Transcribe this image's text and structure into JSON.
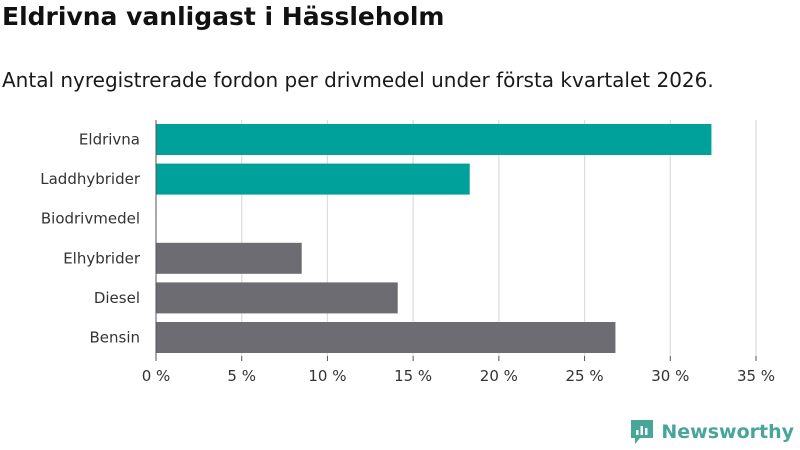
{
  "title": "Eldrivna vanligast i Hässleholm",
  "subtitle": "Antal nyregistrerade fordon per drivmedel under första kvartalet 2026.",
  "brand": {
    "name": "Newsworthy",
    "color": "#48a59a"
  },
  "chart_data": {
    "type": "bar",
    "orientation": "horizontal",
    "categories": [
      "Eldrivna",
      "Laddhybrider",
      "Biodrivmedel",
      "Elhybrider",
      "Diesel",
      "Bensin"
    ],
    "values": [
      32.4,
      18.3,
      0,
      8.5,
      14.1,
      26.8
    ],
    "colors": [
      "#00a19a",
      "#00a19a",
      "#00a19a",
      "#6d6c72",
      "#6d6c72",
      "#6d6c72"
    ],
    "xlim": [
      0,
      35
    ],
    "ticks": [
      0,
      5,
      10,
      15,
      20,
      25,
      30,
      35
    ],
    "tick_labels": [
      "0 %",
      "5 %",
      "10 %",
      "15 %",
      "20 %",
      "25 %",
      "30 %",
      "35 %"
    ],
    "grid": true,
    "xlabel": "",
    "ylabel": ""
  }
}
